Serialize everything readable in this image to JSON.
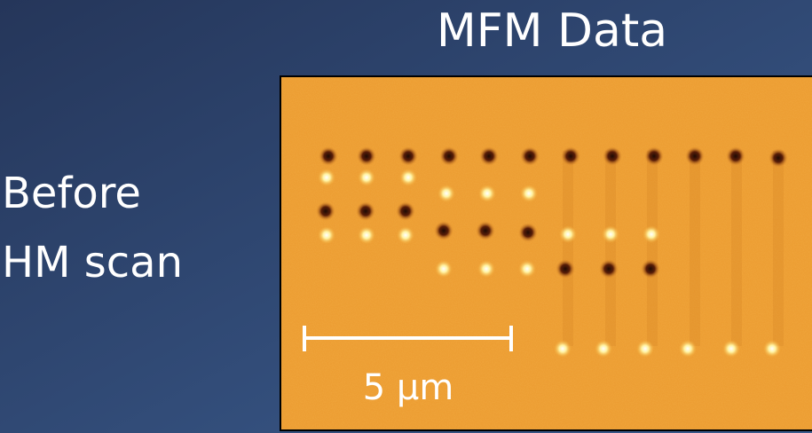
{
  "title": "MFM Data",
  "label_lines": [
    "Before",
    "HM scan"
  ],
  "scale_bar": {
    "label": "5 μm"
  }
}
